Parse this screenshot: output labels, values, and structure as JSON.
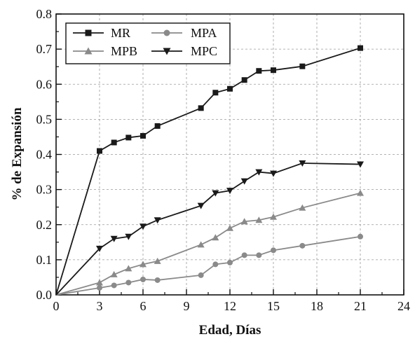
{
  "chart_data": {
    "type": "line",
    "title": "",
    "xlabel": "Edad, Días",
    "ylabel": "% de Expansión",
    "xlim": [
      0,
      24
    ],
    "ylim": [
      0,
      0.8
    ],
    "x_ticks": [
      "0",
      "3",
      "6",
      "9",
      "12",
      "15",
      "18",
      "21",
      "24"
    ],
    "y_ticks": [
      "0.0",
      "0.1",
      "0.2",
      "0.3",
      "0.4",
      "0.5",
      "0.6",
      "0.7",
      "0.8"
    ],
    "grid": true,
    "legend_position": "top-left",
    "series": [
      {
        "name": "MR",
        "marker": "square",
        "color": "#1a1a1a",
        "x": [
          0,
          3,
          4,
          5,
          6,
          7,
          10,
          11,
          12,
          13,
          14,
          15,
          17,
          21
        ],
        "y": [
          0.0,
          0.41,
          0.434,
          0.448,
          0.453,
          0.481,
          0.532,
          0.576,
          0.587,
          0.612,
          0.638,
          0.64,
          0.651,
          0.703
        ]
      },
      {
        "name": "MPA",
        "marker": "circle",
        "color": "#8a8a8a",
        "x": [
          0,
          3,
          4,
          5,
          6,
          7,
          10,
          11,
          12,
          13,
          14,
          15,
          17,
          21
        ],
        "y": [
          0.0,
          0.02,
          0.027,
          0.035,
          0.044,
          0.042,
          0.056,
          0.087,
          0.092,
          0.113,
          0.113,
          0.127,
          0.14,
          0.166
        ]
      },
      {
        "name": "MPB",
        "marker": "triangle-up",
        "color": "#8a8a8a",
        "x": [
          0,
          3,
          4,
          5,
          6,
          7,
          10,
          11,
          12,
          13,
          14,
          15,
          17,
          21
        ],
        "y": [
          0.0,
          0.035,
          0.058,
          0.075,
          0.087,
          0.096,
          0.143,
          0.163,
          0.19,
          0.209,
          0.213,
          0.222,
          0.248,
          0.29
        ]
      },
      {
        "name": "MPC",
        "marker": "triangle-down",
        "color": "#1a1a1a",
        "x": [
          0,
          3,
          4,
          5,
          6,
          7,
          10,
          11,
          12,
          13,
          14,
          15,
          17,
          21
        ],
        "y": [
          0.0,
          0.132,
          0.16,
          0.166,
          0.195,
          0.213,
          0.254,
          0.29,
          0.297,
          0.324,
          0.35,
          0.346,
          0.375,
          0.372
        ]
      }
    ]
  }
}
